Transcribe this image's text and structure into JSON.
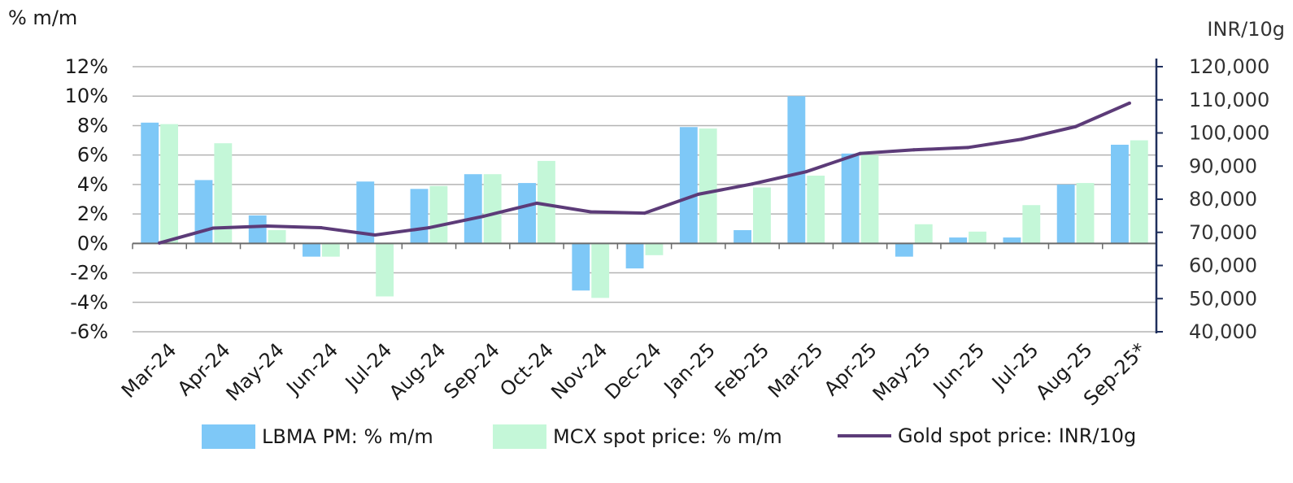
{
  "chart_data": {
    "type": "bar",
    "left_axis_title": "% m/m",
    "right_axis_title": "INR/10g",
    "categories": [
      "Mar-24",
      "Apr-24",
      "May-24",
      "Jun-24",
      "Jul-24",
      "Aug-24",
      "Sep-24",
      "Oct-24",
      "Nov-24",
      "Dec-24",
      "Jan-25",
      "Feb-25",
      "Mar-25",
      "Apr-25",
      "May-25",
      "Jun-25",
      "Jul-25",
      "Aug-25",
      "Sep-25*"
    ],
    "series": [
      {
        "name": "LBMA PM: % m/m",
        "type": "bar",
        "axis": "left",
        "color": "#7ec8f7",
        "values": [
          8.2,
          4.3,
          1.9,
          -0.9,
          4.2,
          3.7,
          4.7,
          4.1,
          -3.2,
          -1.7,
          7.9,
          0.9,
          10.0,
          6.1,
          -0.9,
          0.4,
          0.4,
          4.0,
          6.7
        ]
      },
      {
        "name": "MCX spot price: % m/m",
        "type": "bar",
        "axis": "left",
        "color": "#c4f7d8",
        "values": [
          8.1,
          6.8,
          0.9,
          -0.9,
          -3.6,
          3.9,
          4.7,
          5.6,
          -3.7,
          -0.8,
          7.8,
          3.8,
          4.6,
          6.0,
          1.3,
          0.8,
          2.6,
          4.1,
          7.0
        ]
      },
      {
        "name": "Gold spot price: INR/10g",
        "type": "line",
        "axis": "right",
        "color": "#5c3b78",
        "values": [
          66800,
          71300,
          71900,
          71400,
          69200,
          71400,
          74800,
          78800,
          76200,
          75800,
          81500,
          84600,
          88300,
          93800,
          94900,
          95600,
          98100,
          101900,
          109000
        ]
      }
    ],
    "left_axis": {
      "min": -6,
      "max": 12,
      "step": 2,
      "tick_labels": [
        "-6%",
        "-4%",
        "-2%",
        "0%",
        "2%",
        "4%",
        "6%",
        "8%",
        "10%",
        "12%"
      ]
    },
    "right_axis": {
      "min": 40000,
      "max": 120000,
      "step": 10000,
      "tick_labels": [
        "40,000",
        "50,000",
        "60,000",
        "70,000",
        "80,000",
        "90,000",
        "100,000",
        "110,000",
        "120,000"
      ]
    },
    "grid": true,
    "legend_position": "bottom"
  }
}
